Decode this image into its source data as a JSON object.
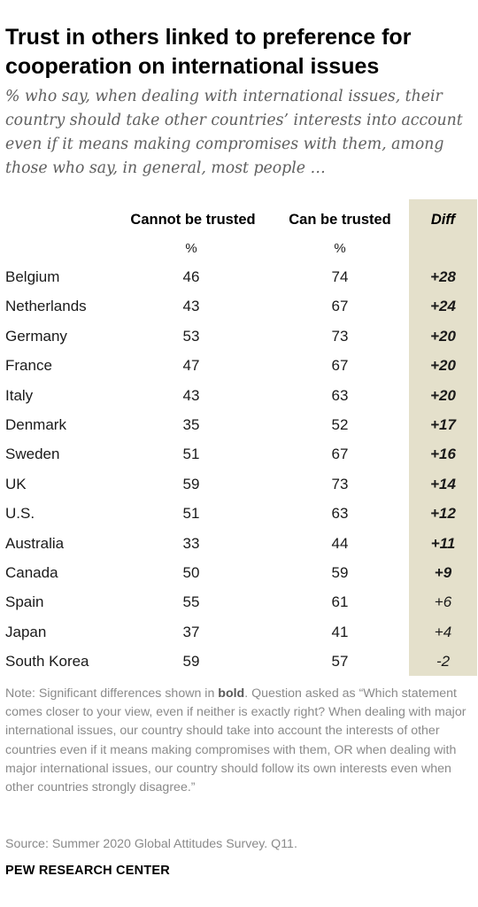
{
  "header": {
    "title": "Trust in others linked to preference for cooperation on international issues",
    "subtitle": "% who say, when dealing with international issues, their country should take other countries’ interests into account even if it means making compromises with them, among those who say, in general, most people …"
  },
  "table": {
    "col_cannot": "Cannot be trusted",
    "col_can": "Can be trusted",
    "col_diff": "Diff",
    "unit_cannot": "%",
    "unit_can": "%"
  },
  "chart_data": {
    "type": "table",
    "columns": [
      "Cannot be trusted",
      "Can be trusted",
      "Diff"
    ],
    "rows": [
      {
        "country": "Belgium",
        "cannot": "46",
        "can": "74",
        "diff": "+28",
        "significant": true
      },
      {
        "country": "Netherlands",
        "cannot": "43",
        "can": "67",
        "diff": "+24",
        "significant": true
      },
      {
        "country": "Germany",
        "cannot": "53",
        "can": "73",
        "diff": "+20",
        "significant": true
      },
      {
        "country": "France",
        "cannot": "47",
        "can": "67",
        "diff": "+20",
        "significant": true
      },
      {
        "country": "Italy",
        "cannot": "43",
        "can": "63",
        "diff": "+20",
        "significant": true
      },
      {
        "country": "Denmark",
        "cannot": "35",
        "can": "52",
        "diff": "+17",
        "significant": true
      },
      {
        "country": "Sweden",
        "cannot": "51",
        "can": "67",
        "diff": "+16",
        "significant": true
      },
      {
        "country": "UK",
        "cannot": "59",
        "can": "73",
        "diff": "+14",
        "significant": true
      },
      {
        "country": "U.S.",
        "cannot": "51",
        "can": "63",
        "diff": "+12",
        "significant": true
      },
      {
        "country": "Australia",
        "cannot": "33",
        "can": "44",
        "diff": "+11",
        "significant": true
      },
      {
        "country": "Canada",
        "cannot": "50",
        "can": "59",
        "diff": "+9",
        "significant": true
      },
      {
        "country": "Spain",
        "cannot": "55",
        "can": "61",
        "diff": "+6",
        "significant": false
      },
      {
        "country": "Japan",
        "cannot": "37",
        "can": "41",
        "diff": "+4",
        "significant": false
      },
      {
        "country": "South Korea",
        "cannot": "59",
        "can": "57",
        "diff": "-2",
        "significant": false
      }
    ]
  },
  "footer": {
    "note_prefix": "Note: Significant differences shown in ",
    "note_bold": "bold",
    "note_rest": ". Question asked as “Which statement comes closer to your view, even if neither is exactly right?  When dealing with major international issues, our country should take into account the interests of other countries even if it means making compromises with them, OR when dealing with major international issues, our country should follow its own interests even when other countries strongly disagree.”",
    "source": "Source: Summer 2020 Global Attitudes Survey. Q11.",
    "brand": "PEW RESEARCH CENTER"
  },
  "colors": {
    "diff_band": "#e4e0cb",
    "subtitle_text": "#5f5f5f",
    "note_text": "#8a8a8a"
  }
}
